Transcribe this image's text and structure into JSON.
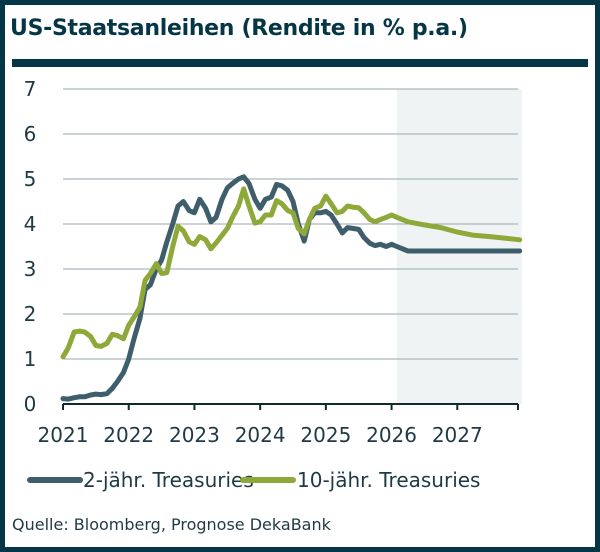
{
  "header": {
    "title": "US-Staatsanleihen (Rendite in % p.a.)"
  },
  "footer": {
    "source": "Quelle: Bloomberg, Prognose DekaBank"
  },
  "colors": {
    "frame": "#053646",
    "series_2y": "#3f5e6b",
    "series_10y": "#8ea83a",
    "forecast_shade": "#eff3f4",
    "grid": "#9aa7ad",
    "axis": "#0f2a33"
  },
  "chart_data": {
    "type": "line",
    "title": "US-Staatsanleihen (Rendite in % p.a.)",
    "xlabel": "",
    "ylabel": "",
    "xlim": [
      2021.0,
      2028.0
    ],
    "ylim": [
      0,
      7
    ],
    "y_ticks": [
      "0",
      "1",
      "2",
      "3",
      "4",
      "5",
      "6",
      "7"
    ],
    "x_ticks": [
      "2021",
      "2022",
      "2023",
      "2024",
      "2025",
      "2026",
      "2027"
    ],
    "grid": true,
    "legend": "bottom",
    "forecast_region": {
      "start": 2026.08,
      "end": 2028.0,
      "label": "Prognose DekaBank"
    },
    "series": [
      {
        "name": "2-jähr. Treasuries",
        "points": [
          [
            2021.0,
            0.12
          ],
          [
            2021.08,
            0.11
          ],
          [
            2021.17,
            0.14
          ],
          [
            2021.25,
            0.16
          ],
          [
            2021.33,
            0.16
          ],
          [
            2021.42,
            0.2
          ],
          [
            2021.5,
            0.22
          ],
          [
            2021.58,
            0.21
          ],
          [
            2021.67,
            0.23
          ],
          [
            2021.75,
            0.35
          ],
          [
            2021.83,
            0.5
          ],
          [
            2021.92,
            0.7
          ],
          [
            2022.0,
            1.0
          ],
          [
            2022.08,
            1.45
          ],
          [
            2022.17,
            1.9
          ],
          [
            2022.25,
            2.55
          ],
          [
            2022.33,
            2.65
          ],
          [
            2022.42,
            3.0
          ],
          [
            2022.5,
            3.2
          ],
          [
            2022.58,
            3.6
          ],
          [
            2022.67,
            4.0
          ],
          [
            2022.75,
            4.4
          ],
          [
            2022.83,
            4.5
          ],
          [
            2022.92,
            4.3
          ],
          [
            2023.0,
            4.25
          ],
          [
            2023.08,
            4.55
          ],
          [
            2023.17,
            4.35
          ],
          [
            2023.25,
            4.05
          ],
          [
            2023.33,
            4.15
          ],
          [
            2023.42,
            4.55
          ],
          [
            2023.5,
            4.8
          ],
          [
            2023.58,
            4.9
          ],
          [
            2023.67,
            5.0
          ],
          [
            2023.75,
            5.05
          ],
          [
            2023.83,
            4.9
          ],
          [
            2023.92,
            4.55
          ],
          [
            2024.0,
            4.35
          ],
          [
            2024.08,
            4.55
          ],
          [
            2024.17,
            4.6
          ],
          [
            2024.25,
            4.88
          ],
          [
            2024.33,
            4.85
          ],
          [
            2024.42,
            4.75
          ],
          [
            2024.5,
            4.5
          ],
          [
            2024.58,
            4.0
          ],
          [
            2024.67,
            3.62
          ],
          [
            2024.75,
            4.1
          ],
          [
            2024.83,
            4.25
          ],
          [
            2024.92,
            4.25
          ],
          [
            2025.0,
            4.28
          ],
          [
            2025.08,
            4.2
          ],
          [
            2025.17,
            4.0
          ],
          [
            2025.25,
            3.8
          ],
          [
            2025.33,
            3.92
          ],
          [
            2025.42,
            3.9
          ],
          [
            2025.5,
            3.88
          ],
          [
            2025.58,
            3.7
          ],
          [
            2025.67,
            3.57
          ],
          [
            2025.75,
            3.52
          ],
          [
            2025.83,
            3.55
          ],
          [
            2025.92,
            3.5
          ],
          [
            2026.0,
            3.55
          ],
          [
            2026.08,
            3.5
          ],
          [
            2026.25,
            3.4
          ],
          [
            2026.5,
            3.4
          ],
          [
            2027.0,
            3.4
          ],
          [
            2027.5,
            3.4
          ],
          [
            2027.95,
            3.4
          ]
        ]
      },
      {
        "name": "10-jähr. Treasuries",
        "points": [
          [
            2021.0,
            1.05
          ],
          [
            2021.08,
            1.25
          ],
          [
            2021.17,
            1.6
          ],
          [
            2021.25,
            1.62
          ],
          [
            2021.33,
            1.6
          ],
          [
            2021.42,
            1.5
          ],
          [
            2021.5,
            1.3
          ],
          [
            2021.58,
            1.28
          ],
          [
            2021.67,
            1.35
          ],
          [
            2021.75,
            1.55
          ],
          [
            2021.83,
            1.52
          ],
          [
            2021.92,
            1.45
          ],
          [
            2022.0,
            1.75
          ],
          [
            2022.08,
            1.93
          ],
          [
            2022.17,
            2.15
          ],
          [
            2022.25,
            2.75
          ],
          [
            2022.33,
            2.9
          ],
          [
            2022.42,
            3.12
          ],
          [
            2022.5,
            2.9
          ],
          [
            2022.58,
            2.92
          ],
          [
            2022.67,
            3.5
          ],
          [
            2022.75,
            3.95
          ],
          [
            2022.83,
            3.85
          ],
          [
            2022.92,
            3.6
          ],
          [
            2023.0,
            3.55
          ],
          [
            2023.08,
            3.72
          ],
          [
            2023.17,
            3.65
          ],
          [
            2023.25,
            3.45
          ],
          [
            2023.33,
            3.58
          ],
          [
            2023.42,
            3.75
          ],
          [
            2023.5,
            3.9
          ],
          [
            2023.58,
            4.15
          ],
          [
            2023.67,
            4.4
          ],
          [
            2023.75,
            4.78
          ],
          [
            2023.83,
            4.4
          ],
          [
            2023.92,
            4.02
          ],
          [
            2024.0,
            4.05
          ],
          [
            2024.08,
            4.2
          ],
          [
            2024.17,
            4.2
          ],
          [
            2024.25,
            4.52
          ],
          [
            2024.33,
            4.45
          ],
          [
            2024.42,
            4.3
          ],
          [
            2024.5,
            4.25
          ],
          [
            2024.58,
            3.9
          ],
          [
            2024.67,
            3.78
          ],
          [
            2024.75,
            4.1
          ],
          [
            2024.83,
            4.35
          ],
          [
            2024.92,
            4.4
          ],
          [
            2025.0,
            4.62
          ],
          [
            2025.08,
            4.45
          ],
          [
            2025.17,
            4.25
          ],
          [
            2025.25,
            4.28
          ],
          [
            2025.33,
            4.4
          ],
          [
            2025.42,
            4.37
          ],
          [
            2025.5,
            4.36
          ],
          [
            2025.58,
            4.25
          ],
          [
            2025.67,
            4.1
          ],
          [
            2025.75,
            4.05
          ],
          [
            2025.83,
            4.1
          ],
          [
            2025.92,
            4.15
          ],
          [
            2026.0,
            4.2
          ],
          [
            2026.08,
            4.15
          ],
          [
            2026.25,
            4.05
          ],
          [
            2026.5,
            3.98
          ],
          [
            2026.75,
            3.92
          ],
          [
            2027.0,
            3.82
          ],
          [
            2027.25,
            3.75
          ],
          [
            2027.5,
            3.72
          ],
          [
            2027.95,
            3.65
          ]
        ]
      }
    ]
  }
}
